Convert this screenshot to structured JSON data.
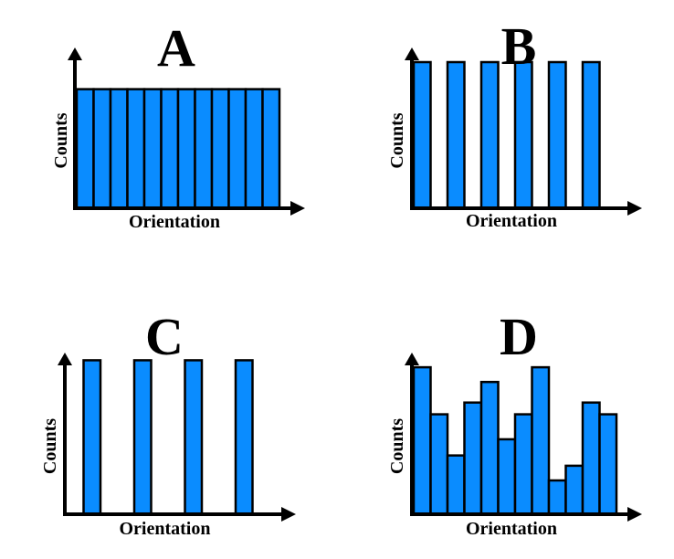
{
  "chart_data": [
    {
      "type": "bar",
      "title": "A",
      "xlabel": "Orientation",
      "ylabel": "Counts",
      "values": [
        1,
        1,
        1,
        1,
        1,
        1,
        1,
        1,
        1,
        1,
        1,
        1
      ],
      "ylim": [
        0,
        1.35
      ]
    },
    {
      "type": "bar",
      "title": "B",
      "xlabel": "Orientation",
      "ylabel": "Counts",
      "values": [
        1,
        0,
        1,
        0,
        1,
        0,
        1,
        0,
        1,
        0,
        1,
        0
      ],
      "ylim": [
        0,
        1.1
      ]
    },
    {
      "type": "bar",
      "title": "C",
      "xlabel": "Orientation",
      "ylabel": "Counts",
      "values": [
        0,
        1,
        0,
        0,
        1,
        0,
        0,
        1,
        0,
        0,
        1,
        0,
        0
      ],
      "ylim": [
        0,
        1.05
      ]
    },
    {
      "type": "bar",
      "title": "D",
      "xlabel": "Orientation",
      "ylabel": "Counts",
      "values": [
        1.0,
        0.68,
        0.4,
        0.76,
        0.9,
        0.51,
        0.68,
        1.0,
        0.23,
        0.33,
        0.76,
        0.68
      ],
      "ylim": [
        0,
        1.1
      ]
    }
  ]
}
